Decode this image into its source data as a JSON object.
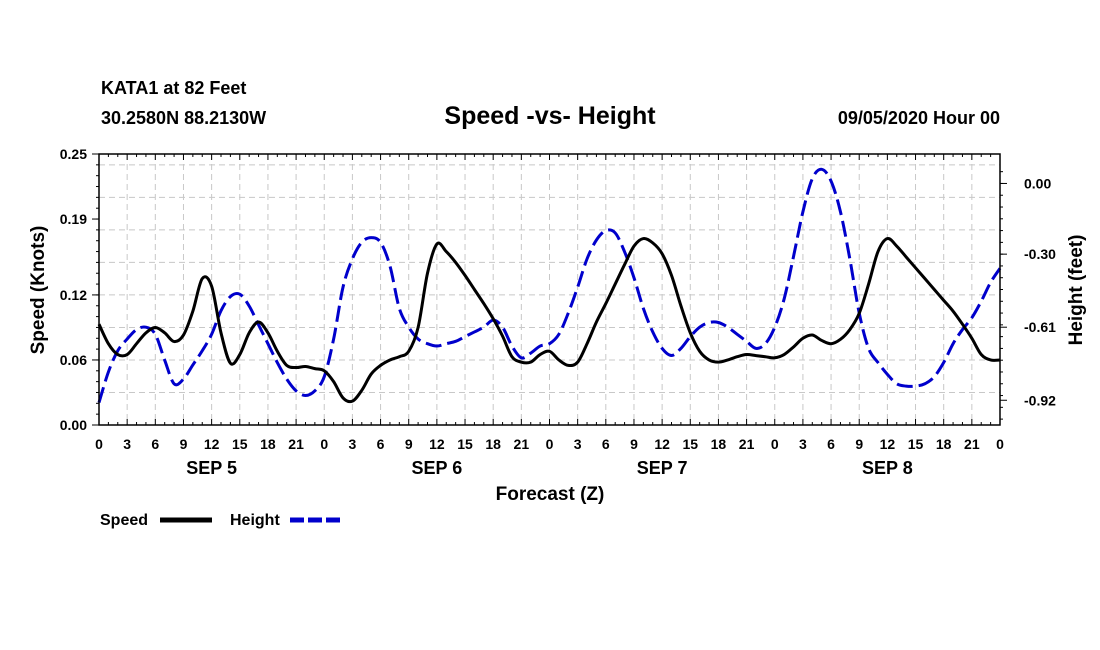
{
  "header": {
    "station": "KATA1 at 82 Feet",
    "coords": "30.2580N 88.2130W",
    "datetime": "09/05/2020 Hour 00"
  },
  "chart_data": {
    "type": "line",
    "title": "Speed -vs- Height",
    "xlabel": "Forecast (Z)",
    "ylabel_left": "Speed (Knots)",
    "ylabel_right": "Height (feet)",
    "xlim": [
      0,
      96
    ],
    "ylim_left": [
      0.0,
      0.25
    ],
    "ylim_right": [
      -1.025,
      0.125
    ],
    "left_ticks": [
      "0.25",
      "0.19",
      "0.12",
      "0.06",
      "0.00"
    ],
    "left_tick_values": [
      0.25,
      0.19,
      0.12,
      0.06,
      0.0
    ],
    "right_ticks": [
      "0.00",
      "-0.30",
      "-0.61",
      "-0.92"
    ],
    "right_tick_values": [
      0.0,
      -0.3,
      -0.61,
      -0.92
    ],
    "x_ticks": [
      "0",
      "3",
      "6",
      "9",
      "12",
      "15",
      "18",
      "21",
      "0",
      "3",
      "6",
      "9",
      "12",
      "15",
      "18",
      "21",
      "0",
      "3",
      "6",
      "9",
      "12",
      "15",
      "18",
      "21",
      "0",
      "3",
      "6",
      "9",
      "12",
      "15",
      "18",
      "21",
      "0"
    ],
    "x_tick_hours": [
      0,
      3,
      6,
      9,
      12,
      15,
      18,
      21,
      24,
      27,
      30,
      33,
      36,
      39,
      42,
      45,
      48,
      51,
      54,
      57,
      60,
      63,
      66,
      69,
      72,
      75,
      78,
      81,
      84,
      87,
      90,
      93,
      96
    ],
    "day_labels": [
      "SEP 5",
      "SEP 6",
      "SEP 7",
      "SEP 8"
    ],
    "day_label_hours": [
      12,
      36,
      60,
      84
    ],
    "grid": true,
    "series": [
      {
        "name": "Speed",
        "axis": "left",
        "color": "#000000",
        "style": "solid",
        "x": [
          0,
          1,
          2,
          3,
          4,
          5,
          6,
          7,
          8,
          9,
          10,
          11,
          12,
          13,
          14,
          15,
          16,
          17,
          18,
          19,
          20,
          21,
          22,
          23,
          24,
          25,
          26,
          27,
          28,
          29,
          30,
          31,
          32,
          33,
          34,
          35,
          36,
          37,
          38,
          39,
          40,
          41,
          42,
          43,
          44,
          45,
          46,
          47,
          48,
          49,
          50,
          51,
          52,
          53,
          54,
          55,
          56,
          57,
          58,
          59,
          60,
          61,
          62,
          63,
          64,
          65,
          66,
          67,
          68,
          69,
          70,
          71,
          72,
          73,
          74,
          75,
          76,
          77,
          78,
          79,
          80,
          81,
          82,
          83,
          84,
          85,
          86,
          87,
          88,
          89,
          90,
          91,
          92,
          93,
          94,
          95,
          96
        ],
        "values": [
          0.093,
          0.075,
          0.065,
          0.065,
          0.075,
          0.085,
          0.09,
          0.085,
          0.077,
          0.083,
          0.105,
          0.135,
          0.128,
          0.085,
          0.057,
          0.065,
          0.085,
          0.095,
          0.085,
          0.068,
          0.055,
          0.053,
          0.054,
          0.052,
          0.05,
          0.04,
          0.025,
          0.022,
          0.032,
          0.047,
          0.055,
          0.06,
          0.063,
          0.068,
          0.09,
          0.14,
          0.167,
          0.16,
          0.15,
          0.138,
          0.125,
          0.112,
          0.098,
          0.082,
          0.063,
          0.058,
          0.058,
          0.065,
          0.068,
          0.06,
          0.055,
          0.058,
          0.075,
          0.095,
          0.112,
          0.13,
          0.148,
          0.165,
          0.172,
          0.168,
          0.158,
          0.138,
          0.11,
          0.085,
          0.068,
          0.06,
          0.058,
          0.06,
          0.063,
          0.065,
          0.064,
          0.063,
          0.062,
          0.065,
          0.072,
          0.08,
          0.083,
          0.078,
          0.075,
          0.079,
          0.088,
          0.103,
          0.13,
          0.16,
          0.172,
          0.165,
          0.155,
          0.145,
          0.135,
          0.125,
          0.115,
          0.105,
          0.093,
          0.08,
          0.065,
          0.06,
          0.06
        ]
      },
      {
        "name": "Height",
        "axis": "right",
        "color": "#0000cc",
        "style": "dashed",
        "x": [
          0,
          1,
          2,
          3,
          4,
          5,
          6,
          7,
          8,
          9,
          10,
          11,
          12,
          13,
          14,
          15,
          16,
          17,
          18,
          19,
          20,
          21,
          22,
          23,
          24,
          25,
          26,
          27,
          28,
          29,
          30,
          31,
          32,
          33,
          34,
          35,
          36,
          37,
          38,
          39,
          40,
          41,
          42,
          43,
          44,
          45,
          46,
          47,
          48,
          49,
          50,
          51,
          52,
          53,
          54,
          55,
          56,
          57,
          58,
          59,
          60,
          61,
          62,
          63,
          64,
          65,
          66,
          67,
          68,
          69,
          70,
          71,
          72,
          73,
          74,
          75,
          76,
          77,
          78,
          79,
          80,
          81,
          82,
          83,
          84,
          85,
          86,
          87,
          88,
          89,
          90,
          91,
          92,
          93,
          94,
          95,
          96
        ],
        "values": [
          -0.93,
          -0.8,
          -0.71,
          -0.66,
          -0.62,
          -0.61,
          -0.64,
          -0.75,
          -0.85,
          -0.83,
          -0.77,
          -0.71,
          -0.64,
          -0.54,
          -0.48,
          -0.47,
          -0.52,
          -0.6,
          -0.68,
          -0.76,
          -0.83,
          -0.88,
          -0.9,
          -0.88,
          -0.82,
          -0.66,
          -0.44,
          -0.32,
          -0.25,
          -0.23,
          -0.25,
          -0.35,
          -0.53,
          -0.61,
          -0.66,
          -0.68,
          -0.69,
          -0.68,
          -0.67,
          -0.65,
          -0.63,
          -0.61,
          -0.58,
          -0.61,
          -0.69,
          -0.74,
          -0.72,
          -0.69,
          -0.68,
          -0.64,
          -0.55,
          -0.44,
          -0.32,
          -0.24,
          -0.2,
          -0.21,
          -0.29,
          -0.4,
          -0.53,
          -0.63,
          -0.7,
          -0.73,
          -0.7,
          -0.65,
          -0.61,
          -0.59,
          -0.59,
          -0.61,
          -0.64,
          -0.67,
          -0.7,
          -0.68,
          -0.61,
          -0.49,
          -0.31,
          -0.12,
          0.02,
          0.06,
          0.01,
          -0.12,
          -0.32,
          -0.55,
          -0.7,
          -0.76,
          -0.81,
          -0.85,
          -0.86,
          -0.86,
          -0.85,
          -0.82,
          -0.76,
          -0.68,
          -0.62,
          -0.57,
          -0.5,
          -0.42,
          -0.36
        ]
      }
    ]
  }
}
